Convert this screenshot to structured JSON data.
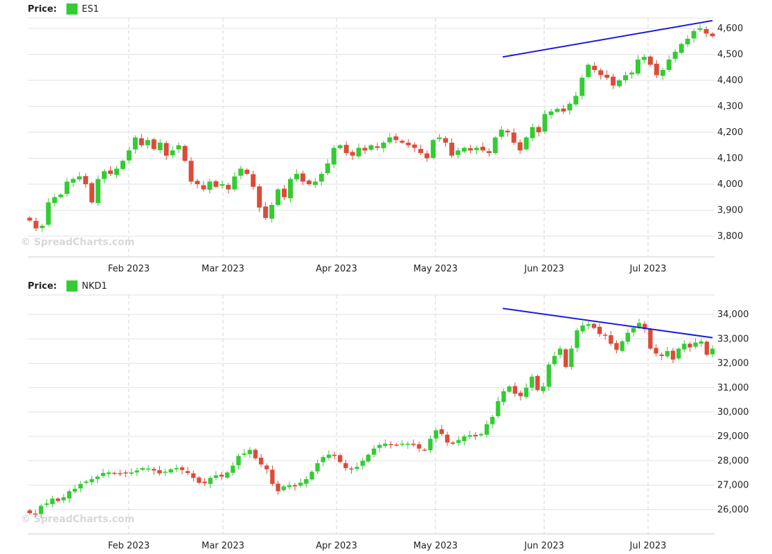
{
  "watermark": "© SpreadCharts.com",
  "colors": {
    "up": "#33cc33",
    "down": "#dd4b39",
    "trendline": "#1a1adb",
    "grid": "#e2e2e2"
  },
  "chart_data": [
    {
      "type": "candlestick",
      "legend_label": "Price:",
      "series_name": "ES1",
      "ylim": [
        3720,
        4640
      ],
      "y_ticks": [
        3800,
        3900,
        4000,
        4100,
        4200,
        4300,
        4400,
        4500,
        4600
      ],
      "y_tick_labels": [
        "3,800",
        "3,900",
        "4,000",
        "4,100",
        "4,200",
        "4,300",
        "4,400",
        "4,500",
        "4,600"
      ],
      "x_tick_labels": [
        "Feb 2023",
        "Mar 2023",
        "Apr 2023",
        "May 2023",
        "Jun 2023",
        "Jul 2023"
      ],
      "grid": true,
      "trendline": {
        "from": [
          97,
          4490
        ],
        "to": [
          140,
          4630
        ]
      },
      "close": [
        3860,
        3830,
        3840,
        3930,
        3950,
        3960,
        4010,
        4020,
        4030,
        4000,
        3930,
        4020,
        4050,
        4040,
        4060,
        4090,
        4130,
        4180,
        4150,
        4170,
        4135,
        4160,
        4110,
        4130,
        4150,
        4090,
        4010,
        4000,
        3980,
        4010,
        3990,
        4000,
        3980,
        4030,
        4060,
        4040,
        3990,
        3910,
        3870,
        3920,
        3980,
        3950,
        4020,
        4040,
        4010,
        4000,
        4010,
        4040,
        4080,
        4140,
        4150,
        4120,
        4110,
        4140,
        4130,
        4150,
        4140,
        4160,
        4180,
        4170,
        4160,
        4150,
        4140,
        4120,
        4100,
        4170,
        4180,
        4160,
        4110,
        4130,
        4140,
        4130,
        4140,
        4130,
        4120,
        4180,
        4210,
        4200,
        4160,
        4130,
        4180,
        4220,
        4200,
        4270,
        4280,
        4290,
        4280,
        4310,
        4340,
        4410,
        4460,
        4440,
        4420,
        4410,
        4380,
        4400,
        4420,
        4430,
        4480,
        4490,
        4460,
        4420,
        4440,
        4480,
        4510,
        4540,
        4560,
        4590,
        4600,
        4580,
        4570
      ],
      "x_major_index": [
        17,
        35,
        52,
        68,
        86,
        103
      ]
    },
    {
      "type": "candlestick",
      "legend_label": "Price:",
      "series_name": "NKD1",
      "ylim": [
        25000,
        34800
      ],
      "y_ticks": [
        26000,
        27000,
        28000,
        29000,
        30000,
        31000,
        32000,
        33000,
        34000
      ],
      "y_tick_labels": [
        "26,000",
        "27,000",
        "28,000",
        "29,000",
        "30,000",
        "31,000",
        "32,000",
        "33,000",
        "34,000"
      ],
      "x_tick_labels": [
        "Feb 2023",
        "Mar 2023",
        "Apr 2023",
        "May 2023",
        "Jun 2023",
        "Jul 2023"
      ],
      "grid": true,
      "trendline": {
        "from": [
          97,
          34250
        ],
        "to": [
          140,
          33050
        ]
      },
      "close": [
        25850,
        25800,
        26150,
        26250,
        26450,
        26350,
        26500,
        26750,
        26850,
        27050,
        27150,
        27250,
        27350,
        27500,
        27520,
        27480,
        27480,
        27500,
        27520,
        27600,
        27700,
        27680,
        27600,
        27480,
        27550,
        27650,
        27700,
        27620,
        27500,
        27300,
        27100,
        27080,
        27300,
        27400,
        27350,
        27520,
        27800,
        28200,
        28300,
        28450,
        28100,
        27850,
        27650,
        27050,
        26750,
        26950,
        27000,
        26950,
        27100,
        27250,
        27550,
        27900,
        28150,
        28250,
        28200,
        27950,
        27700,
        27650,
        27750,
        28000,
        28250,
        28500,
        28650,
        28700,
        28650,
        28650,
        28700,
        28700,
        28650,
        28500,
        28450,
        28900,
        29250,
        29100,
        28750,
        28700,
        28850,
        29000,
        29050,
        29000,
        29100,
        29500,
        29800,
        30450,
        30850,
        31050,
        30750,
        30650,
        31000,
        31450,
        30900,
        31050,
        31950,
        32300,
        32600,
        31850,
        32600,
        33350,
        33550,
        33600,
        33450,
        33200,
        33150,
        32800,
        32550,
        32900,
        33250,
        33450,
        33650,
        33400,
        32600,
        32400,
        32300,
        32500,
        32150,
        32600,
        32800,
        32650,
        32850,
        32900,
        32350,
        32600
      ],
      "x_major_index": [
        17,
        35,
        56,
        73,
        93,
        110
      ]
    }
  ]
}
